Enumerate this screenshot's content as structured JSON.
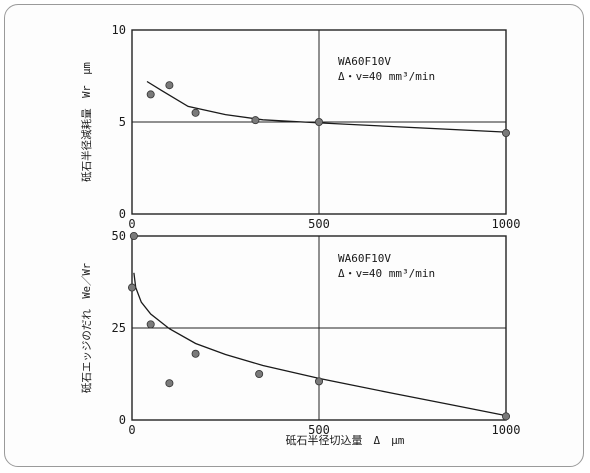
{
  "chart_data": [
    {
      "type": "scatter",
      "title": "",
      "annotation": [
        "WA60F10V",
        "Δ・v=40 mm³/min"
      ],
      "xlabel": "",
      "ylabel": "砥石半径減耗量　Wr　μm",
      "xlim": [
        0,
        1000
      ],
      "ylim": [
        0,
        10
      ],
      "x_ticks": [
        "0",
        "500",
        "1000"
      ],
      "y_ticks": [
        "0",
        "5",
        "10"
      ],
      "grid": "partial",
      "series": [
        {
          "points": [
            [
              50,
              6.5
            ],
            [
              100,
              7.0
            ],
            [
              170,
              5.5
            ],
            [
              330,
              5.1
            ],
            [
              500,
              5.0
            ],
            [
              1000,
              4.4
            ]
          ],
          "fit_curve": [
            [
              40,
              7.2
            ],
            [
              80,
              6.7
            ],
            [
              150,
              5.85
            ],
            [
              250,
              5.4
            ],
            [
              350,
              5.12
            ],
            [
              500,
              4.95
            ],
            [
              700,
              4.75
            ],
            [
              1000,
              4.45
            ]
          ]
        }
      ]
    },
    {
      "type": "scatter",
      "title": "",
      "annotation": [
        "WA60F10V",
        "Δ・v=40 mm³/min"
      ],
      "xlabel": "砥石半径切込量　Δ　μm",
      "ylabel": "砥石エッジのだれ　We／Wr",
      "xlim": [
        0,
        1000
      ],
      "ylim": [
        0,
        50
      ],
      "x_ticks": [
        "0",
        "500",
        "1000"
      ],
      "y_ticks": [
        "0",
        "25",
        "50"
      ],
      "grid": "partial",
      "series": [
        {
          "points": [
            [
              0,
              36
            ],
            [
              5,
              50
            ],
            [
              50,
              26
            ],
            [
              100,
              10
            ],
            [
              170,
              18
            ],
            [
              340,
              12.5
            ],
            [
              500,
              10.5
            ],
            [
              1000,
              1
            ]
          ],
          "fit_curve": [
            [
              5,
              40
            ],
            [
              10,
              36
            ],
            [
              25,
              32
            ],
            [
              50,
              28.8
            ],
            [
              100,
              24.8
            ],
            [
              170,
              20.8
            ],
            [
              250,
              17.8
            ],
            [
              350,
              14.8
            ],
            [
              500,
              11.3
            ],
            [
              700,
              7.2
            ],
            [
              850,
              4.2
            ],
            [
              1000,
              1.2
            ]
          ]
        }
      ]
    }
  ]
}
